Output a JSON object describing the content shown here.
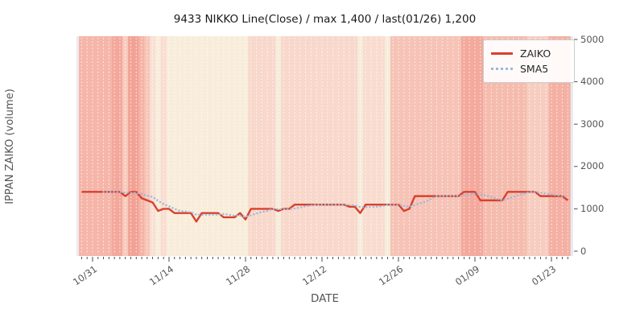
{
  "chart_data": {
    "type": "line",
    "title": "9433 NIKKO Line(Close) / max 1,400 / last(01/26) 1,200",
    "xlabel": "DATE",
    "ylabel": "IPPAN ZAIKO (volume)",
    "ylim": [
      0,
      5000
    ],
    "yticks": [
      0,
      1000,
      2000,
      3000,
      4000,
      5000
    ],
    "grid": {
      "vertical_daily_lines": true,
      "color": "#ffffff",
      "dashed": true
    },
    "plot_bg": "#eaeaf2",
    "legend": {
      "position": "upper right",
      "entries": [
        "ZAIKO",
        "SMA5"
      ]
    },
    "xticks": [
      {
        "label": "10/31",
        "index": 2
      },
      {
        "label": "11/14",
        "index": 16
      },
      {
        "label": "11/28",
        "index": 30
      },
      {
        "label": "12/12",
        "index": 44
      },
      {
        "label": "12/26",
        "index": 58
      },
      {
        "label": "01/09",
        "index": 72
      },
      {
        "label": "01/23",
        "index": 86
      }
    ],
    "dates": [
      "10/29",
      "10/30",
      "10/31",
      "11/01",
      "11/02",
      "11/03",
      "11/04",
      "11/05",
      "11/06",
      "11/07",
      "11/08",
      "11/09",
      "11/10",
      "11/11",
      "11/12",
      "11/13",
      "11/14",
      "11/15",
      "11/16",
      "11/17",
      "11/18",
      "11/19",
      "11/20",
      "11/21",
      "11/22",
      "11/23",
      "11/24",
      "11/25",
      "11/26",
      "11/27",
      "11/28",
      "11/29",
      "11/30",
      "12/01",
      "12/02",
      "12/03",
      "12/04",
      "12/05",
      "12/06",
      "12/07",
      "12/08",
      "12/09",
      "12/10",
      "12/11",
      "12/12",
      "12/13",
      "12/14",
      "12/15",
      "12/16",
      "12/17",
      "12/18",
      "12/19",
      "12/20",
      "12/21",
      "12/22",
      "12/23",
      "12/24",
      "12/25",
      "12/26",
      "12/27",
      "12/28",
      "12/29",
      "12/30",
      "12/31",
      "01/01",
      "01/02",
      "01/03",
      "01/04",
      "01/05",
      "01/06",
      "01/07",
      "01/08",
      "01/09",
      "01/10",
      "01/11",
      "01/12",
      "01/13",
      "01/14",
      "01/15",
      "01/16",
      "01/17",
      "01/18",
      "01/19",
      "01/20",
      "01/21",
      "01/22",
      "01/23",
      "01/24",
      "01/25",
      "01/26"
    ],
    "series": [
      {
        "name": "ZAIKO",
        "color": "#d9402e",
        "style": "solid",
        "max": 1400,
        "last": 1200,
        "values": [
          1400,
          1400,
          1400,
          1400,
          1400,
          1400,
          1400,
          1400,
          1300,
          1400,
          1400,
          1250,
          1200,
          1150,
          950,
          1000,
          1000,
          900,
          900,
          900,
          900,
          700,
          900,
          900,
          900,
          900,
          800,
          800,
          800,
          900,
          750,
          1000,
          1000,
          1000,
          1000,
          1000,
          950,
          1000,
          1000,
          1100,
          1100,
          1100,
          1100,
          1100,
          1100,
          1100,
          1100,
          1100,
          1100,
          1050,
          1050,
          900,
          1100,
          1100,
          1100,
          1100,
          1100,
          1100,
          1100,
          950,
          1000,
          1300,
          1300,
          1300,
          1300,
          1300,
          1300,
          1300,
          1300,
          1300,
          1400,
          1400,
          1400,
          1200,
          1200,
          1200,
          1200,
          1200,
          1400,
          1400,
          1400,
          1400,
          1400,
          1400,
          1300,
          1300,
          1300,
          1300,
          1300,
          1200
        ]
      },
      {
        "name": "SMA5",
        "color": "#9db8d9",
        "style": "dotted",
        "derived": "5-day trailing moving average of ZAIKO"
      }
    ],
    "background_bands": [
      {
        "from": 0,
        "to": 5,
        "color": "#f6b5a9"
      },
      {
        "from": 6,
        "to": 7,
        "color": "#f3a89b"
      },
      {
        "from": 8,
        "to": 8,
        "color": "#f8cabc"
      },
      {
        "from": 9,
        "to": 10,
        "color": "#f2a295"
      },
      {
        "from": 11,
        "to": 11,
        "color": "#f5b3a6"
      },
      {
        "from": 12,
        "to": 12,
        "color": "#f7c5b6"
      },
      {
        "from": 13,
        "to": 13,
        "color": "#fadfd3"
      },
      {
        "from": 14,
        "to": 14,
        "color": "#f8ecdc"
      },
      {
        "from": 15,
        "to": 15,
        "color": "#fadcd0"
      },
      {
        "from": 16,
        "to": 30,
        "color": "#f8edda"
      },
      {
        "from": 31,
        "to": 35,
        "color": "#f8d8cb"
      },
      {
        "from": 36,
        "to": 36,
        "color": "#f6ecdb"
      },
      {
        "from": 37,
        "to": 50,
        "color": "#f8d8cb"
      },
      {
        "from": 51,
        "to": 51,
        "color": "#f6ecdb"
      },
      {
        "from": 52,
        "to": 55,
        "color": "#f9dccf"
      },
      {
        "from": 56,
        "to": 56,
        "color": "#f6ecdb"
      },
      {
        "from": 57,
        "to": 69,
        "color": "#f6c3b6"
      },
      {
        "from": 70,
        "to": 73,
        "color": "#f3a99c"
      },
      {
        "from": 74,
        "to": 81,
        "color": "#f5bcae"
      },
      {
        "from": 82,
        "to": 85,
        "color": "#f7cdc0"
      },
      {
        "from": 86,
        "to": 89,
        "color": "#f4b0a3"
      }
    ]
  }
}
